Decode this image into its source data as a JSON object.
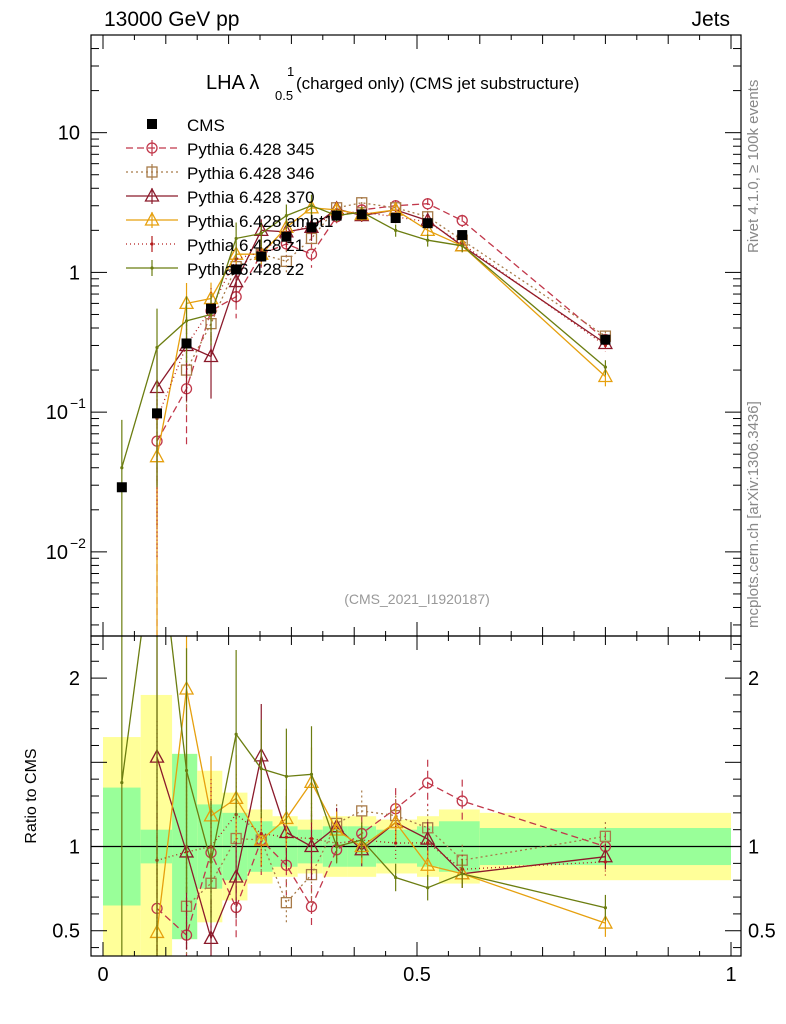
{
  "header": {
    "left": "13000 GeV pp",
    "right": "Jets"
  },
  "side_labels": {
    "rivet": "Rivet 4.1.0, ≥ 100k events",
    "mcplots": "mcplots.cern.ch [arXiv:1306.3436]"
  },
  "chart_data": {
    "type": "line",
    "title": "LHA λ",
    "title_sup": "1",
    "title_sub": "0.5",
    "title_rest": " (charged only) (CMS jet substructure)",
    "watermark": "(CMS_2021_I1920187)",
    "xlabel": "",
    "ylabel_top": "",
    "ylabel_ratio": "Ratio to CMS",
    "xlim": [
      0,
      1
    ],
    "ylim_top": [
      0.0025,
      50
    ],
    "ylim_ratio": [
      0.35,
      2.25
    ],
    "yscale_top": "log",
    "xticks": [
      {
        "v": 0,
        "label": "0"
      },
      {
        "v": 0.5,
        "label": "0.5"
      },
      {
        "v": 1,
        "label": "1"
      }
    ],
    "yticks_top": [
      {
        "v": 0.01,
        "base": "10",
        "exp": "−2"
      },
      {
        "v": 0.1,
        "base": "10",
        "exp": "−1"
      },
      {
        "v": 1,
        "base": "1",
        "exp": ""
      },
      {
        "v": 10,
        "base": "10",
        "exp": ""
      }
    ],
    "yticks_ratio": [
      {
        "v": 0.5,
        "label": "0.5"
      },
      {
        "v": 1,
        "label": "1"
      },
      {
        "v": 2,
        "label": "2"
      }
    ],
    "x": [
      0.03,
      0.086,
      0.133,
      0.172,
      0.212,
      0.252,
      0.292,
      0.332,
      0.372,
      0.412,
      0.466,
      0.517,
      0.572,
      0.8
    ],
    "bin_edges": [
      0,
      0.06,
      0.11,
      0.15,
      0.19,
      0.23,
      0.27,
      0.31,
      0.35,
      0.39,
      0.435,
      0.5,
      0.535,
      0.6,
      1.0
    ],
    "data": {
      "name": "CMS",
      "values": [
        0.029,
        0.098,
        0.31,
        0.55,
        1.05,
        1.3,
        1.8,
        2.1,
        2.55,
        2.6,
        2.45,
        2.25,
        1.85,
        0.33
      ]
    },
    "band_inner": [
      0.35,
      0.1,
      0.55,
      0.25,
      0.2,
      0.15,
      0.12,
      0.1,
      0.12,
      0.12,
      0.1,
      0.12,
      0.15,
      0.11
    ],
    "band_outer": [
      0.65,
      0.9,
      0.55,
      0.45,
      0.32,
      0.22,
      0.18,
      0.16,
      0.18,
      0.18,
      0.16,
      0.18,
      0.22,
      0.2
    ],
    "series": [
      {
        "name": "Pythia 6.428 345",
        "color": "#c1374a",
        "dash": "7,4",
        "marker": "circle",
        "values": [
          null,
          0.062,
          0.147,
          0.53,
          0.67,
          1.35,
          1.6,
          1.35,
          2.5,
          2.8,
          3.0,
          3.1,
          2.35,
          0.33
        ],
        "yerr_frac": [
          0,
          1.0,
          0.6,
          0.4,
          0.3,
          0.2,
          0.2,
          0.2,
          0.1,
          0.1,
          0.1,
          0.1,
          0.1,
          0.08
        ]
      },
      {
        "name": "Pythia 6.428 346",
        "color": "#a87b49",
        "dash": "2,3",
        "marker": "square",
        "values": [
          null,
          null,
          0.2,
          0.43,
          1.1,
          1.35,
          1.2,
          1.75,
          2.9,
          3.15,
          2.9,
          2.5,
          1.7,
          0.35
        ],
        "yerr_frac": [
          0,
          0,
          0.5,
          0.4,
          0.3,
          0.2,
          0.2,
          0.2,
          0.1,
          0.1,
          0.1,
          0.1,
          0.1,
          0.08
        ]
      },
      {
        "name": "Pythia 6.428 370",
        "color": "#8b1a2b",
        "dash": "",
        "marker": "triangle",
        "values": [
          null,
          0.15,
          0.3,
          0.25,
          0.86,
          2.0,
          1.95,
          2.1,
          2.85,
          2.55,
          2.8,
          2.35,
          1.55,
          0.31
        ],
        "yerr_frac": [
          0,
          0.9,
          0.6,
          0.5,
          0.3,
          0.2,
          0.2,
          0.2,
          0.1,
          0.1,
          0.1,
          0.1,
          0.1,
          0.08
        ]
      },
      {
        "name": "Pythia 6.428 ambt1",
        "color": "#e6a00e",
        "dash": "",
        "marker": "triangle",
        "values": [
          null,
          0.048,
          0.6,
          0.65,
          1.35,
          1.35,
          2.1,
          2.9,
          2.8,
          2.6,
          2.8,
          2.0,
          1.55,
          0.18
        ],
        "yerr_frac": [
          0,
          1.0,
          0.4,
          0.3,
          0.2,
          0.15,
          0.15,
          0.15,
          0.1,
          0.1,
          0.1,
          0.1,
          0.1,
          0.15
        ]
      },
      {
        "name": "Pythia 6.428 z1",
        "color": "#b31c1c",
        "dash": "1,3",
        "marker": "dot",
        "values": [
          null,
          0.09,
          0.3,
          0.55,
          1.25,
          1.4,
          1.9,
          2.2,
          2.6,
          2.7,
          2.5,
          2.3,
          1.6,
          0.3
        ],
        "yerr_frac": [
          0,
          0.9,
          0.5,
          0.4,
          0.2,
          0.2,
          0.2,
          0.2,
          0.1,
          0.1,
          0.1,
          0.1,
          0.1,
          0.1
        ]
      },
      {
        "name": "Pythia 6.428 z2",
        "color": "#6b7d10",
        "dash": "",
        "marker": "dot",
        "values": [
          0.04,
          0.29,
          0.45,
          0.5,
          1.75,
          1.9,
          2.55,
          3.0,
          2.55,
          2.7,
          2.0,
          1.7,
          1.55,
          0.21
        ],
        "yerr_frac": [
          1.2,
          0.9,
          0.5,
          0.4,
          0.3,
          0.2,
          0.2,
          0.2,
          0.1,
          0.1,
          0.1,
          0.1,
          0.1,
          0.12
        ]
      }
    ]
  }
}
